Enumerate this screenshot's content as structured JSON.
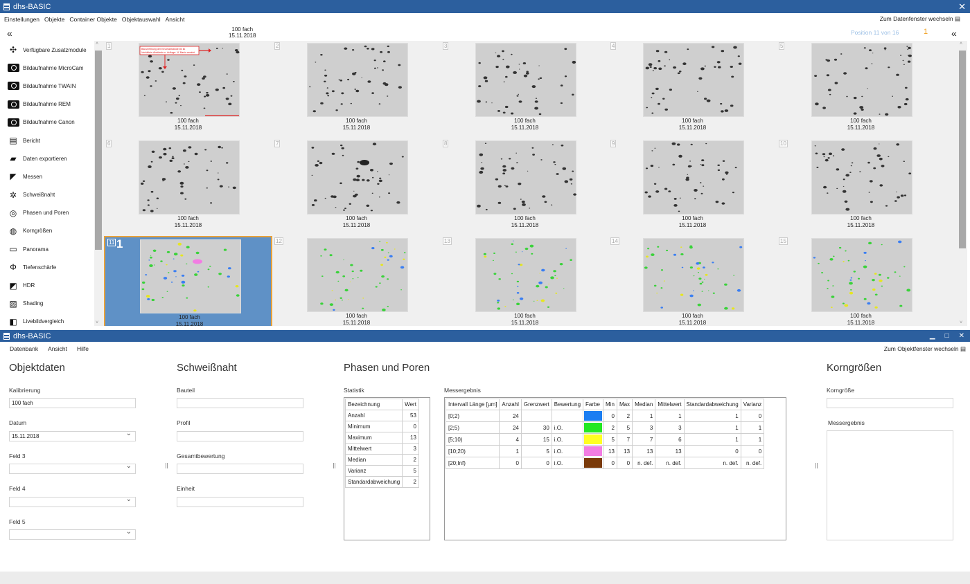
{
  "win1": {
    "title": "dhs-BASIC",
    "close_glyph": "✕",
    "menu": [
      "Einstellungen",
      "Objekte",
      "Container Objekte",
      "Objektauswahl",
      "Ansicht"
    ],
    "switch_label": "Zum Datenfenster wechseln",
    "selected_info": {
      "line1": "100 fach",
      "line2": "15.11.2018"
    },
    "position_text": "Position 11 von 16",
    "selected_count": "1",
    "collapse_glyph": "«"
  },
  "sidebar": [
    {
      "label": "Verfügbare Zusatzmodule",
      "icon": "puzzle-icon"
    },
    {
      "label": "Bildaufnahme MicroCam",
      "icon": "camera-icon"
    },
    {
      "label": "Bildaufnahme TWAIN",
      "icon": "camera-icon"
    },
    {
      "label": "Bildaufnahme REM",
      "icon": "camera-icon"
    },
    {
      "label": "Bildaufnahme Canon",
      "icon": "camera-icon"
    },
    {
      "label": "Bericht",
      "icon": "report-icon"
    },
    {
      "label": "Daten exportieren",
      "icon": "export-icon"
    },
    {
      "label": "Messen",
      "icon": "measure-icon"
    },
    {
      "label": "Schweißnaht",
      "icon": "weld-icon"
    },
    {
      "label": "Phasen und Poren",
      "icon": "phases-icon"
    },
    {
      "label": "Korngrößen",
      "icon": "grain-icon"
    },
    {
      "label": "Panorama",
      "icon": "panorama-icon"
    },
    {
      "label": "Tiefenschärfe",
      "icon": "depth-icon"
    },
    {
      "label": "HDR",
      "icon": "hdr-icon"
    },
    {
      "label": "Shading",
      "icon": "shading-icon"
    },
    {
      "label": "Livebildvergleich",
      "icon": "live-compare-icon"
    }
  ],
  "thumbnails": [
    {
      "num": "1",
      "cap1": "100 fach",
      "cap2": "15.11.2018"
    },
    {
      "num": "2",
      "cap1": "100 fach",
      "cap2": "15.11.2018"
    },
    {
      "num": "3",
      "cap1": "100 fach",
      "cap2": "15.11.2018"
    },
    {
      "num": "4",
      "cap1": "100 fach",
      "cap2": "15.11.2018"
    },
    {
      "num": "5",
      "cap1": "100 fach",
      "cap2": "15.11.2018"
    },
    {
      "num": "6",
      "cap1": "100 fach",
      "cap2": "15.11.2018"
    },
    {
      "num": "7",
      "cap1": "100 fach",
      "cap2": "15.11.2018"
    },
    {
      "num": "8",
      "cap1": "100 fach",
      "cap2": "15.11.2018"
    },
    {
      "num": "9",
      "cap1": "100 fach",
      "cap2": "15.11.2018"
    },
    {
      "num": "10",
      "cap1": "100 fach",
      "cap2": "15.11.2018"
    },
    {
      "num": "11",
      "cap1": "100 fach",
      "cap2": "15.11.2018",
      "selected": true,
      "mark": "1"
    },
    {
      "num": "12",
      "cap1": "100 fach",
      "cap2": "15.11.2018"
    },
    {
      "num": "13",
      "cap1": "100 fach",
      "cap2": "15.11.2018"
    },
    {
      "num": "14",
      "cap1": "100 fach",
      "cap2": "15.11.2018"
    },
    {
      "num": "15",
      "cap1": "100 fach",
      "cap2": "15.11.2018"
    }
  ],
  "win2": {
    "title": "dhs-BASIC",
    "menu": [
      "Datenbank",
      "Ansicht",
      "Hilfe"
    ],
    "switch_label": "Zum Objektfenster wechseln",
    "min_glyph": "▁",
    "max_glyph": "□",
    "close_glyph": "✕"
  },
  "objektdaten": {
    "heading": "Objektdaten",
    "kalibrierung_label": "Kalibrierung",
    "kalibrierung_value": "100 fach",
    "datum_label": "Datum",
    "datum_value": "15.11.2018",
    "feld3_label": "Feld 3",
    "feld4_label": "Feld 4",
    "feld5_label": "Feld 5"
  },
  "schweissnaht": {
    "heading": "Schweißnaht",
    "bauteil_label": "Bauteil",
    "profil_label": "Profil",
    "gesamt_label": "Gesamtbewertung",
    "einheit_label": "Einheit"
  },
  "phasen": {
    "heading": "Phasen und Poren",
    "statistik_label": "Statistik",
    "stat_headers": [
      "Bezeichnung",
      "Wert"
    ],
    "stat_rows": [
      [
        "Anzahl",
        "53"
      ],
      [
        "Minimum",
        "0"
      ],
      [
        "Maximum",
        "13"
      ],
      [
        "Mittelwert",
        "3"
      ],
      [
        "Median",
        "2"
      ],
      [
        "Varianz",
        "5"
      ],
      [
        "Standardabweichung",
        "2"
      ]
    ],
    "messergebnis_label": "Messergebnis",
    "res_headers": [
      "Intervall Länge [µm]",
      "Anzahl",
      "Grenzwert",
      "Bewertung",
      "Farbe",
      "Min",
      "Max",
      "Median",
      "Mittelwert",
      "Standardabweichung",
      "Varianz"
    ],
    "res_rows": [
      {
        "cells": [
          "[0;2)",
          "24",
          "",
          "",
          "",
          "0",
          "2",
          "1",
          "1",
          "1",
          "0"
        ],
        "color": "#1b7ef2"
      },
      {
        "cells": [
          "[2;5)",
          "24",
          "30",
          "i.O.",
          "",
          "2",
          "5",
          "3",
          "3",
          "1",
          "1"
        ],
        "color": "#22e822"
      },
      {
        "cells": [
          "[5;10)",
          "4",
          "15",
          "i.O.",
          "",
          "5",
          "7",
          "7",
          "6",
          "1",
          "1"
        ],
        "color": "#ffff22"
      },
      {
        "cells": [
          "[10;20)",
          "1",
          "5",
          "i.O.",
          "",
          "13",
          "13",
          "13",
          "13",
          "0",
          "0"
        ],
        "color": "#f27de3"
      },
      {
        "cells": [
          "[20;Inf)",
          "0",
          "0",
          "i.O.",
          "",
          "0",
          "0",
          "n. def.",
          "n. def.",
          "n. def.",
          "n. def."
        ],
        "color": "#7a3a0a"
      }
    ]
  },
  "korn": {
    "heading": "Korngrößen",
    "korngroesse_label": "Korngröße",
    "messergebnis_label": "Messergebnis"
  },
  "annotation": {
    "text1": "Bauverteilung der Einzelabstände 80 kk",
    "text2": "Verhältnis-Abstände n. Auflage: 'A' Basic-ansicht"
  }
}
